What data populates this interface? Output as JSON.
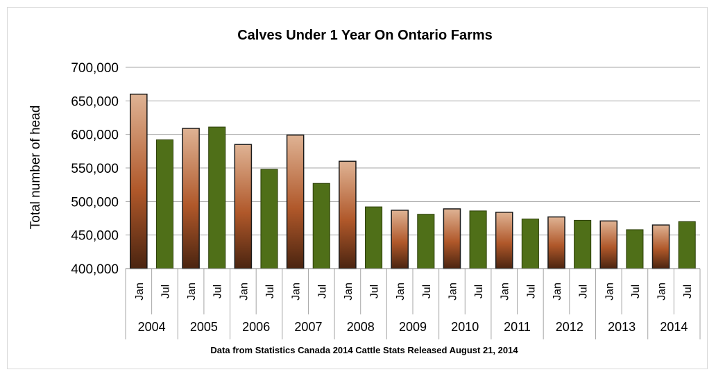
{
  "chart_data": {
    "type": "bar",
    "title": "Calves Under 1 Year On Ontario Farms",
    "ylabel": "Total number of head",
    "xlabel": "",
    "source_note": "Data from Statistics Canada 2014 Cattle Stats  Released August 21, 2014",
    "ylim": [
      400000,
      700000
    ],
    "ytick_step": 50000,
    "ytick_labels": [
      "400,000",
      "450,000",
      "500,000",
      "550,000",
      "600,000",
      "650,000",
      "700,000"
    ],
    "grid": true,
    "years": [
      "2004",
      "2005",
      "2006",
      "2007",
      "2008",
      "2009",
      "2010",
      "2011",
      "2012",
      "2013",
      "2014"
    ],
    "months": [
      "Jan",
      "Jul"
    ],
    "categories": [
      "2004 Jan",
      "2004 Jul",
      "2005 Jan",
      "2005 Jul",
      "2006 Jan",
      "2006 Jul",
      "2007 Jan",
      "2007 Jul",
      "2008 Jan",
      "2008 Jul",
      "2009 Jan",
      "2009 Jul",
      "2010 Jan",
      "2010 Jul",
      "2011 Jan",
      "2011 Jul",
      "2012 Jan",
      "2012 Jul",
      "2013 Jan",
      "2013 Jul",
      "2014 Jan",
      "2014 Jul"
    ],
    "values": [
      660000,
      592000,
      609000,
      611000,
      585000,
      548000,
      599000,
      527000,
      560000,
      492000,
      487000,
      481000,
      489000,
      486000,
      484000,
      474000,
      477000,
      472000,
      471000,
      458000,
      465000,
      470000
    ],
    "colors": {
      "jan_light": "#dfb394",
      "jan_mid": "#b0582a",
      "jan_dark": "#4a2410",
      "jul": "#4f6f18",
      "jul_stroke": "#2d3f0a",
      "grid": "#a6a6a6"
    }
  }
}
